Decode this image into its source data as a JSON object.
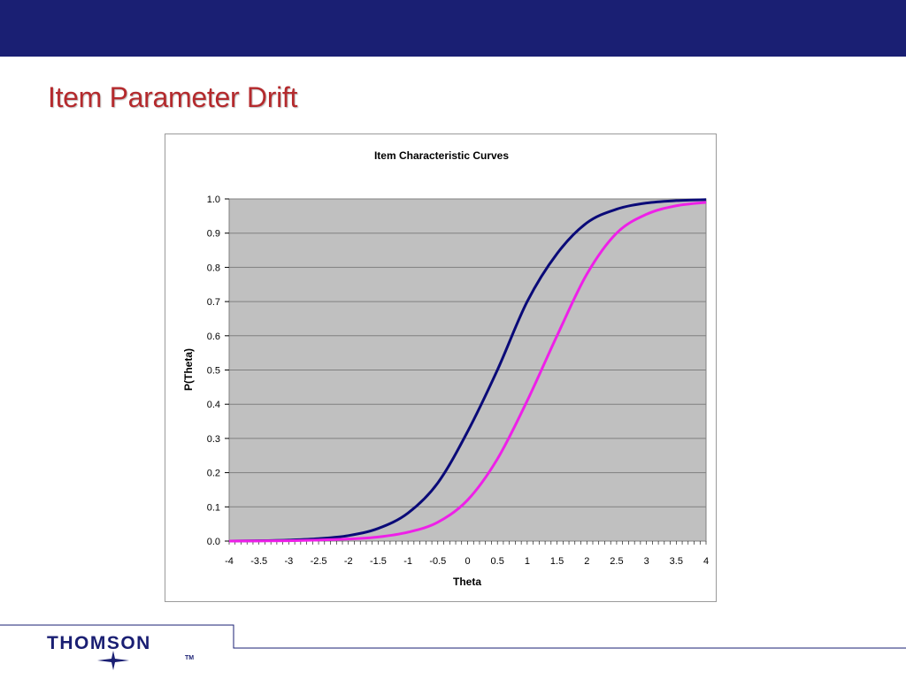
{
  "slide": {
    "title": "Item Parameter Drift",
    "bar_color": "#1a1f73",
    "title_color": "#b42a2d"
  },
  "logo": {
    "brand": "THOMSON",
    "trademark": "TM",
    "icon": "star-burst-icon"
  },
  "chart_data": {
    "type": "line",
    "title": "Item Characteristic Curves",
    "xlabel": "Theta",
    "ylabel": "P(Theta)",
    "xlim": [
      -4,
      4
    ],
    "ylim": [
      0,
      1
    ],
    "x_ticks": [
      "-4",
      "-3.5",
      "-3",
      "-2.5",
      "-2",
      "-1.5",
      "-1",
      "-0.5",
      "0",
      "0.5",
      "1",
      "1.5",
      "2",
      "2.5",
      "3",
      "3.5",
      "4"
    ],
    "y_ticks": [
      "0.0",
      "0.1",
      "0.2",
      "0.3",
      "0.4",
      "0.5",
      "0.6",
      "0.7",
      "0.8",
      "0.9",
      "1.0"
    ],
    "grid": "horizontal",
    "plot_background": "#c0c0c0",
    "x": [
      -4,
      -3.5,
      -3,
      -2.5,
      -2,
      -1.5,
      -1,
      -0.5,
      0,
      0.5,
      1,
      1.5,
      2,
      2.5,
      3,
      3.5,
      4
    ],
    "series": [
      {
        "color": "#0a0a78",
        "values": [
          0.0,
          0.001,
          0.003,
          0.007,
          0.016,
          0.037,
          0.082,
          0.17,
          0.32,
          0.5,
          0.7,
          0.84,
          0.93,
          0.97,
          0.988,
          0.995,
          0.998
        ]
      },
      {
        "color": "#ee20e8",
        "values": [
          0.0,
          0.0004,
          0.001,
          0.003,
          0.006,
          0.012,
          0.026,
          0.055,
          0.12,
          0.24,
          0.41,
          0.6,
          0.78,
          0.9,
          0.955,
          0.98,
          0.99
        ]
      }
    ]
  }
}
